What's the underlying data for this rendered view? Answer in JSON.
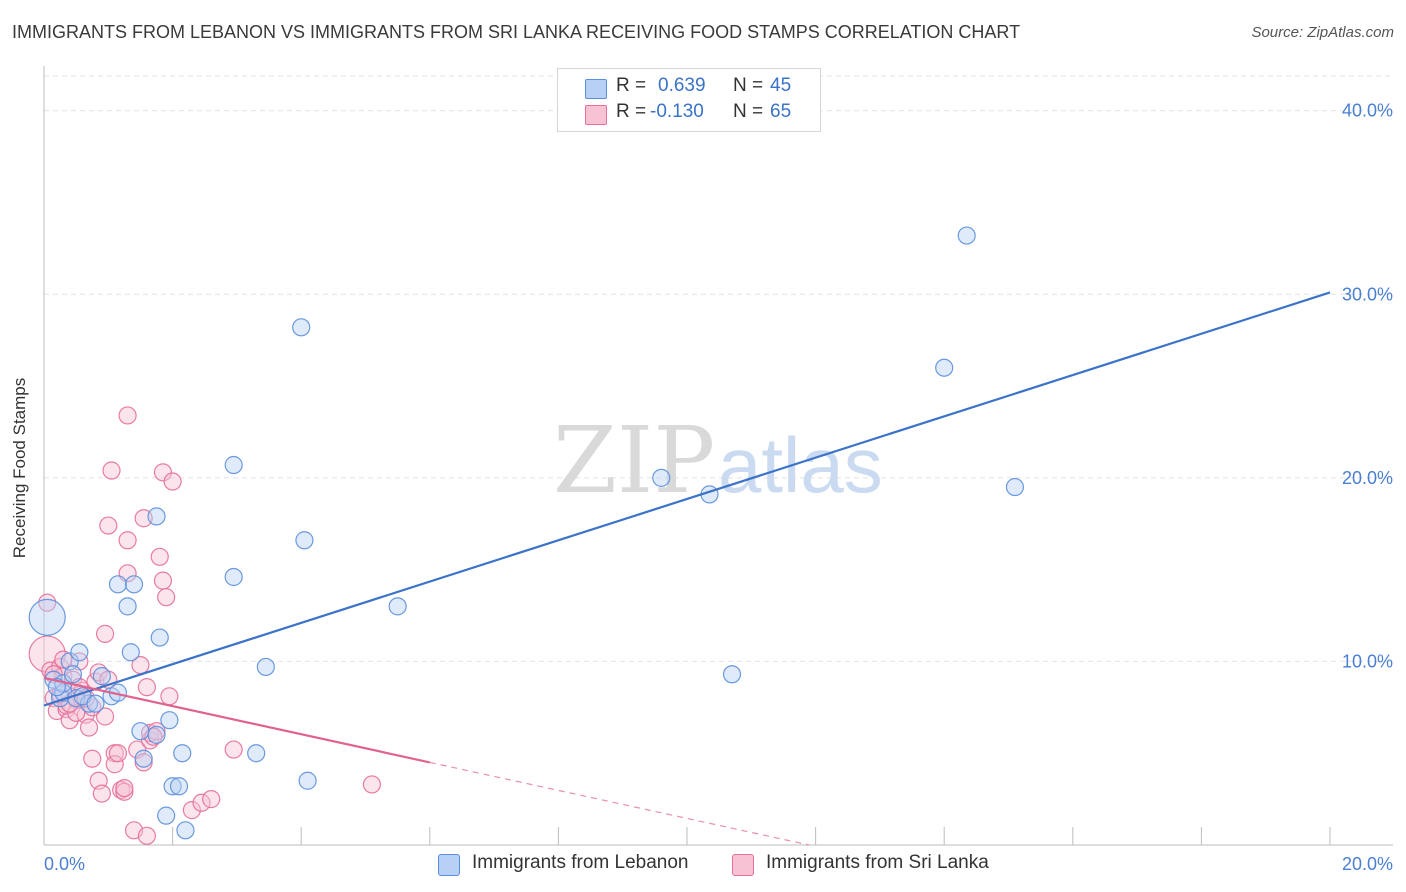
{
  "title": "IMMIGRANTS FROM LEBANON VS IMMIGRANTS FROM SRI LANKA RECEIVING FOOD STAMPS CORRELATION CHART",
  "source": "Source: ZipAtlas.com",
  "watermark": {
    "zip": "ZIP",
    "atlas": "atlas"
  },
  "colors": {
    "lebanon": "#5b8fdc",
    "lebanon_fill": "#b8d0f3",
    "srilanka": "#e66f9a",
    "srilanka_fill": "#f7c3d4",
    "tick_label": "#4a7fd1",
    "grid": "#e2e2e2"
  },
  "legend": {
    "lebanon": {
      "r_label": "R =",
      "r_value": "0.639",
      "n_label": "N =",
      "n_value": "45"
    },
    "srilanka": {
      "r_label": "R =",
      "r_value": "-0.130",
      "n_label": "N =",
      "n_value": "65"
    }
  },
  "bottom_legend": {
    "lebanon": "Immigrants from Lebanon",
    "srilanka": "Immigrants from Sri Lanka"
  },
  "chart_data": {
    "type": "scatter",
    "title": "IMMIGRANTS FROM LEBANON VS IMMIGRANTS FROM SRI LANKA RECEIVING FOOD STAMPS CORRELATION CHART",
    "xlabel": "",
    "ylabel": "Receiving Food Stamps",
    "xlim": [
      0,
      20
    ],
    "ylim": [
      0,
      42
    ],
    "x_tick_labels": {
      "min": "0.0%",
      "max": "20.0%"
    },
    "y_ticks": [
      {
        "value": 10,
        "label": "10.0%"
      },
      {
        "value": 20,
        "label": "20.0%"
      },
      {
        "value": 30,
        "label": "30.0%"
      },
      {
        "value": 40,
        "label": "40.0%"
      }
    ],
    "series": [
      {
        "name": "Immigrants from Lebanon",
        "trend": {
          "x0": 0.0,
          "y0": 7.6,
          "x1": 20.0,
          "y1": 30.1
        },
        "points": [
          {
            "x": 0.05,
            "y": 12.4,
            "big": true
          },
          {
            "x": 0.15,
            "y": 9.0
          },
          {
            "x": 0.25,
            "y": 8.0
          },
          {
            "x": 0.3,
            "y": 8.3
          },
          {
            "x": 0.4,
            "y": 10.0
          },
          {
            "x": 0.5,
            "y": 8.0
          },
          {
            "x": 0.55,
            "y": 10.5
          },
          {
            "x": 0.7,
            "y": 7.7
          },
          {
            "x": 0.9,
            "y": 9.2
          },
          {
            "x": 1.05,
            "y": 8.1
          },
          {
            "x": 1.15,
            "y": 14.2
          },
          {
            "x": 1.3,
            "y": 13.0
          },
          {
            "x": 1.35,
            "y": 10.5
          },
          {
            "x": 1.4,
            "y": 14.2
          },
          {
            "x": 1.5,
            "y": 6.2
          },
          {
            "x": 1.55,
            "y": 4.7
          },
          {
            "x": 1.75,
            "y": 6.0
          },
          {
            "x": 1.75,
            "y": 17.9
          },
          {
            "x": 1.8,
            "y": 11.3
          },
          {
            "x": 1.9,
            "y": 1.6
          },
          {
            "x": 1.95,
            "y": 6.8
          },
          {
            "x": 2.0,
            "y": 3.2
          },
          {
            "x": 2.1,
            "y": 3.2
          },
          {
            "x": 2.15,
            "y": 5.0
          },
          {
            "x": 2.2,
            "y": 0.8
          },
          {
            "x": 2.95,
            "y": 20.7
          },
          {
            "x": 2.95,
            "y": 14.6
          },
          {
            "x": 3.3,
            "y": 5.0
          },
          {
            "x": 3.45,
            "y": 9.7
          },
          {
            "x": 4.0,
            "y": 28.2
          },
          {
            "x": 4.05,
            "y": 16.6
          },
          {
            "x": 4.1,
            "y": 3.5
          },
          {
            "x": 5.5,
            "y": 13.0
          },
          {
            "x": 9.6,
            "y": 20.0
          },
          {
            "x": 10.35,
            "y": 19.1
          },
          {
            "x": 10.7,
            "y": 9.3
          },
          {
            "x": 14.0,
            "y": 26.0
          },
          {
            "x": 14.35,
            "y": 33.2
          },
          {
            "x": 15.1,
            "y": 19.5
          },
          {
            "x": 0.3,
            "y": 8.8
          },
          {
            "x": 0.6,
            "y": 8.1
          },
          {
            "x": 0.8,
            "y": 7.7
          },
          {
            "x": 1.15,
            "y": 8.3
          },
          {
            "x": 0.45,
            "y": 9.3
          },
          {
            "x": 0.2,
            "y": 8.6
          }
        ]
      },
      {
        "name": "Immigrants from Sri Lanka",
        "trend": {
          "x0": 0.0,
          "y0": 9.1,
          "x1": 6.0,
          "y1": 4.5,
          "dash_to": {
            "x": 11.9,
            "y": 0.0
          }
        },
        "points": [
          {
            "x": 0.05,
            "y": 13.2
          },
          {
            "x": 0.05,
            "y": 10.4,
            "big": true
          },
          {
            "x": 0.1,
            "y": 9.5
          },
          {
            "x": 0.15,
            "y": 8.0
          },
          {
            "x": 0.2,
            "y": 7.3
          },
          {
            "x": 0.25,
            "y": 9.7
          },
          {
            "x": 0.3,
            "y": 9.2
          },
          {
            "x": 0.35,
            "y": 7.4
          },
          {
            "x": 0.4,
            "y": 6.8
          },
          {
            "x": 0.45,
            "y": 9.0
          },
          {
            "x": 0.5,
            "y": 7.9
          },
          {
            "x": 0.55,
            "y": 10.0
          },
          {
            "x": 0.6,
            "y": 8.4
          },
          {
            "x": 0.65,
            "y": 7.1
          },
          {
            "x": 0.7,
            "y": 6.4
          },
          {
            "x": 0.75,
            "y": 4.7
          },
          {
            "x": 0.8,
            "y": 8.9
          },
          {
            "x": 0.85,
            "y": 3.5
          },
          {
            "x": 0.9,
            "y": 2.8
          },
          {
            "x": 0.95,
            "y": 7.0
          },
          {
            "x": 0.95,
            "y": 11.5
          },
          {
            "x": 1.0,
            "y": 17.4
          },
          {
            "x": 1.05,
            "y": 20.4
          },
          {
            "x": 1.1,
            "y": 5.0
          },
          {
            "x": 1.1,
            "y": 4.4
          },
          {
            "x": 1.15,
            "y": 5.0
          },
          {
            "x": 1.2,
            "y": 3.0
          },
          {
            "x": 1.25,
            "y": 2.9
          },
          {
            "x": 1.3,
            "y": 16.6
          },
          {
            "x": 1.3,
            "y": 14.8
          },
          {
            "x": 1.3,
            "y": 23.4
          },
          {
            "x": 1.4,
            "y": 0.8
          },
          {
            "x": 1.45,
            "y": 5.2
          },
          {
            "x": 1.5,
            "y": 9.8
          },
          {
            "x": 1.55,
            "y": 17.8
          },
          {
            "x": 1.55,
            "y": 4.5
          },
          {
            "x": 1.6,
            "y": 8.6
          },
          {
            "x": 1.6,
            "y": 0.5
          },
          {
            "x": 1.65,
            "y": 5.7
          },
          {
            "x": 1.65,
            "y": 6.1
          },
          {
            "x": 1.75,
            "y": 6.2
          },
          {
            "x": 1.8,
            "y": 15.7
          },
          {
            "x": 1.85,
            "y": 14.4
          },
          {
            "x": 1.85,
            "y": 20.3
          },
          {
            "x": 1.9,
            "y": 13.5
          },
          {
            "x": 1.95,
            "y": 8.1
          },
          {
            "x": 2.0,
            "y": 19.8
          },
          {
            "x": 2.3,
            "y": 1.9
          },
          {
            "x": 2.45,
            "y": 2.3
          },
          {
            "x": 2.6,
            "y": 2.5
          },
          {
            "x": 2.95,
            "y": 5.2
          },
          {
            "x": 5.1,
            "y": 3.3
          },
          {
            "x": 0.25,
            "y": 8.2
          },
          {
            "x": 0.35,
            "y": 7.6
          },
          {
            "x": 0.55,
            "y": 8.6
          },
          {
            "x": 0.75,
            "y": 7.5
          },
          {
            "x": 0.85,
            "y": 9.4
          },
          {
            "x": 0.15,
            "y": 9.3
          },
          {
            "x": 0.5,
            "y": 7.2
          },
          {
            "x": 1.25,
            "y": 3.1
          },
          {
            "x": 1.7,
            "y": 5.9
          },
          {
            "x": 0.4,
            "y": 7.7
          },
          {
            "x": 0.65,
            "y": 8.0
          },
          {
            "x": 1.0,
            "y": 9.0
          },
          {
            "x": 0.3,
            "y": 10.1
          }
        ]
      }
    ]
  }
}
